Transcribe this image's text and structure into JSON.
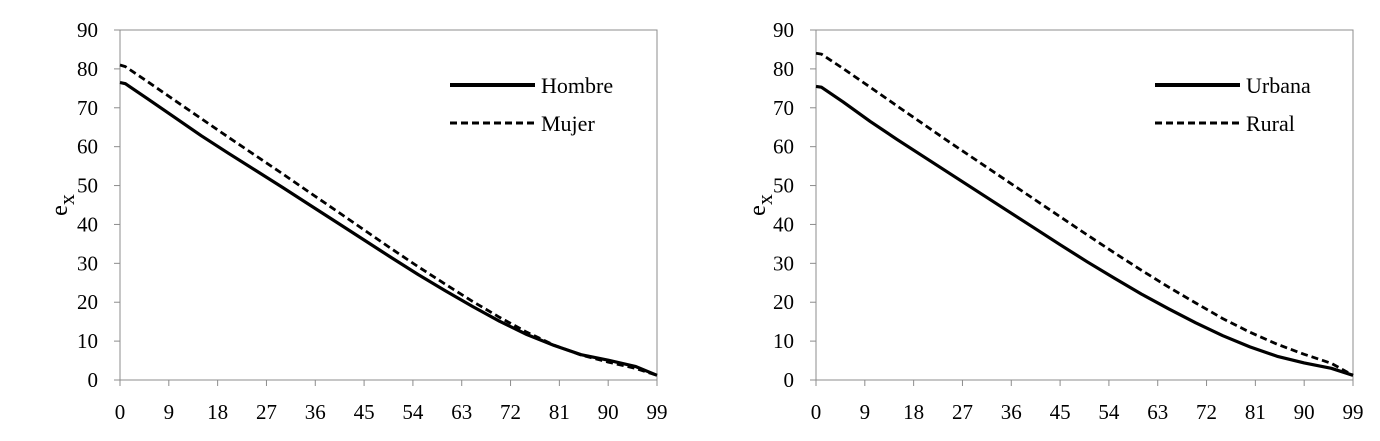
{
  "chart_data": [
    {
      "type": "line",
      "title": "",
      "xlabel": "",
      "ylabel": "e",
      "ylabel_subscript": "x",
      "xlim": [
        0,
        99
      ],
      "ylim": [
        0,
        90
      ],
      "xticks": [
        "0",
        "9",
        "18",
        "27",
        "36",
        "45",
        "54",
        "63",
        "72",
        "81",
        "90",
        "99"
      ],
      "yticks": [
        "0",
        "10",
        "20",
        "30",
        "40",
        "50",
        "60",
        "70",
        "80",
        "90"
      ],
      "grid": false,
      "legend_position": "top-right",
      "x": [
        0,
        1,
        5,
        10,
        15,
        20,
        25,
        30,
        35,
        40,
        45,
        50,
        55,
        60,
        65,
        70,
        75,
        80,
        85,
        90,
        95,
        99
      ],
      "series": [
        {
          "name": "Hombre",
          "style": "solid",
          "color": "#000000",
          "values": [
            76.5,
            76.2,
            72.4,
            67.6,
            62.8,
            58.3,
            53.9,
            49.5,
            45.0,
            40.5,
            36.0,
            31.5,
            27.1,
            22.9,
            18.9,
            15.1,
            11.7,
            8.9,
            6.5,
            5.1,
            3.5,
            1.2
          ]
        },
        {
          "name": "Mujer",
          "style": "dashed",
          "color": "#000000",
          "values": [
            81.0,
            80.6,
            76.8,
            72.0,
            67.2,
            62.4,
            57.7,
            53.0,
            48.2,
            43.4,
            38.6,
            33.8,
            29.1,
            24.6,
            20.2,
            16.1,
            12.3,
            9.0,
            6.4,
            4.6,
            3.0,
            1.2
          ]
        }
      ]
    },
    {
      "type": "line",
      "title": "",
      "xlabel": "",
      "ylabel": "e",
      "ylabel_subscript": "x",
      "xlim": [
        0,
        99
      ],
      "ylim": [
        0,
        90
      ],
      "xticks": [
        "0",
        "9",
        "18",
        "27",
        "36",
        "45",
        "54",
        "63",
        "72",
        "81",
        "90",
        "99"
      ],
      "yticks": [
        "0",
        "10",
        "20",
        "30",
        "40",
        "50",
        "60",
        "70",
        "80",
        "90"
      ],
      "grid": false,
      "legend_position": "top-right",
      "x": [
        0,
        1,
        5,
        10,
        15,
        20,
        25,
        30,
        35,
        40,
        45,
        50,
        55,
        60,
        65,
        70,
        75,
        80,
        85,
        90,
        95,
        99
      ],
      "series": [
        {
          "name": "Urbana",
          "style": "solid",
          "color": "#000000",
          "values": [
            75.5,
            75.3,
            71.5,
            66.5,
            61.8,
            57.3,
            52.8,
            48.3,
            43.8,
            39.3,
            34.8,
            30.4,
            26.2,
            22.1,
            18.3,
            14.7,
            11.4,
            8.5,
            6.1,
            4.4,
            3.0,
            1.2
          ]
        },
        {
          "name": "Rural",
          "style": "dashed",
          "color": "#000000",
          "values": [
            84.0,
            83.8,
            80.1,
            75.3,
            70.4,
            65.6,
            60.8,
            56.1,
            51.4,
            46.7,
            42.0,
            37.3,
            32.7,
            28.2,
            23.9,
            19.8,
            15.8,
            12.3,
            9.2,
            6.6,
            4.3,
            1.2
          ]
        }
      ]
    }
  ]
}
